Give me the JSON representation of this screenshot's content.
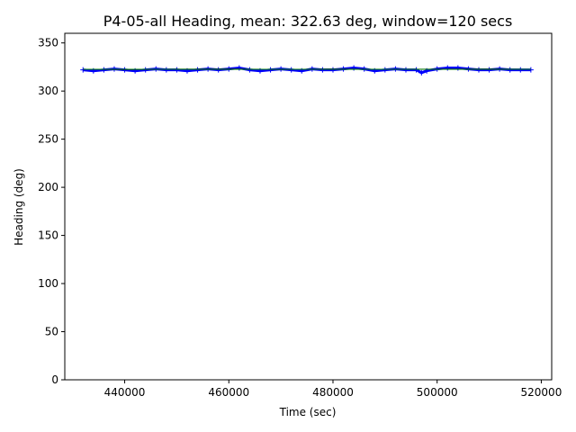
{
  "chart_data": {
    "type": "line",
    "title": "P4-05-all Heading, mean: 322.63 deg, window=120 secs",
    "xlabel": "Time (sec)",
    "ylabel": "Heading (deg)",
    "xlim": [
      428500,
      522000
    ],
    "ylim": [
      0,
      360
    ],
    "xticks": [
      440000,
      460000,
      480000,
      500000,
      520000
    ],
    "xtick_labels": [
      "440000",
      "460000",
      "480000",
      "500000",
      "520000"
    ],
    "yticks": [
      0,
      50,
      100,
      150,
      200,
      250,
      300,
      350
    ],
    "ytick_labels": [
      "0",
      "50",
      "100",
      "150",
      "200",
      "250",
      "300",
      "350"
    ],
    "grid": false,
    "series": [
      {
        "color": "#0000ff",
        "style": "markers-plus",
        "x": [
          432000,
          434000,
          436000,
          438000,
          440000,
          442000,
          444000,
          446000,
          448000,
          450000,
          452000,
          454000,
          456000,
          458000,
          460000,
          462000,
          464000,
          466000,
          468000,
          470000,
          472000,
          474000,
          476000,
          478000,
          480000,
          482000,
          484000,
          486000,
          488000,
          490000,
          492000,
          494000,
          496000,
          497000,
          498000,
          500000,
          502000,
          504000,
          506000,
          508000,
          510000,
          512000,
          514000,
          516000,
          518000
        ],
        "y": [
          322,
          321,
          322,
          323,
          322,
          321,
          322,
          323,
          322,
          322,
          321,
          322,
          323,
          322,
          323,
          324,
          322,
          321,
          322,
          323,
          322,
          321,
          323,
          322,
          322,
          323,
          324,
          323,
          321,
          322,
          323,
          322,
          322,
          319,
          321,
          323,
          324,
          324,
          323,
          322,
          322,
          323,
          322,
          322,
          322
        ]
      },
      {
        "color": "#000000",
        "style": "line",
        "x": [
          432000,
          440000,
          450000,
          460000,
          470000,
          480000,
          490000,
          500000,
          510000,
          518000
        ],
        "y": [
          322.6,
          322.4,
          322.7,
          322.9,
          322.5,
          322.8,
          322.6,
          322.7,
          322.8,
          322.6
        ]
      },
      {
        "color": "#008000",
        "style": "line",
        "x": [
          432000,
          518000
        ],
        "y": [
          322.63,
          322.63
        ]
      }
    ]
  }
}
